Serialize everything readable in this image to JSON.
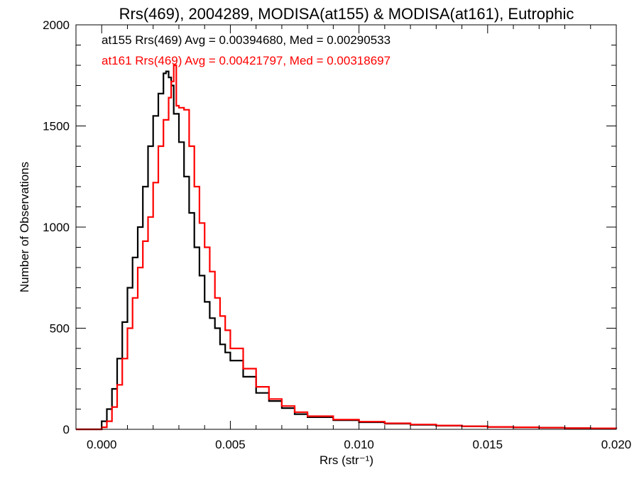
{
  "chart_data": {
    "type": "line",
    "title": "Rrs(469), 2004289, MODISA(at155) & MODISA(at161), Eutrophic",
    "xlabel": "Rrs (str⁻¹)",
    "ylabel": "Number of Observations",
    "xlim": [
      -0.001,
      0.02
    ],
    "ylim": [
      0,
      2000
    ],
    "x_ticks": [
      0.0,
      0.005,
      0.01,
      0.015,
      0.02
    ],
    "x_tick_labels": [
      "0.000",
      "0.005",
      "0.010",
      "0.015",
      "0.020"
    ],
    "y_ticks": [
      0,
      500,
      1000,
      1500,
      2000
    ],
    "y_tick_labels": [
      "0",
      "500",
      "1000",
      "1500",
      "2000"
    ],
    "grid": false,
    "legend_position": "top-left",
    "series": [
      {
        "name": "at155",
        "color": "#000000",
        "legend_text": "at155 Rrs(469) Avg = 0.00394680, Med = 0.00290533",
        "x": [
          -0.001,
          -0.0004,
          0.0,
          0.0002,
          0.0004,
          0.0006,
          0.0008,
          0.001,
          0.0012,
          0.0014,
          0.0016,
          0.0018,
          0.002,
          0.0022,
          0.0024,
          0.0025,
          0.0026,
          0.0027,
          0.0028,
          0.003,
          0.0032,
          0.0034,
          0.0036,
          0.0038,
          0.004,
          0.0042,
          0.0044,
          0.0046,
          0.0048,
          0.005,
          0.0055,
          0.006,
          0.0065,
          0.007,
          0.0075,
          0.008,
          0.009,
          0.01,
          0.011,
          0.012,
          0.013,
          0.014,
          0.015,
          0.016,
          0.017,
          0.018,
          0.019,
          0.02
        ],
        "y": [
          0,
          0,
          40,
          100,
          200,
          350,
          530,
          700,
          850,
          1000,
          1200,
          1400,
          1550,
          1660,
          1760,
          1770,
          1740,
          1700,
          1560,
          1420,
          1250,
          1070,
          900,
          760,
          630,
          550,
          500,
          420,
          380,
          340,
          260,
          180,
          140,
          105,
          75,
          60,
          45,
          35,
          28,
          22,
          18,
          15,
          12,
          10,
          8,
          6,
          5,
          4
        ]
      },
      {
        "name": "at161",
        "color": "#ff0000",
        "legend_text": "at161 Rrs(469) Avg = 0.00421797, Med = 0.00318697",
        "x": [
          -0.001,
          -0.0004,
          0.0,
          0.0002,
          0.0004,
          0.0006,
          0.0008,
          0.001,
          0.0012,
          0.0014,
          0.0016,
          0.0018,
          0.002,
          0.0022,
          0.0024,
          0.0026,
          0.0027,
          0.0028,
          0.0029,
          0.003,
          0.0032,
          0.0034,
          0.0036,
          0.0038,
          0.004,
          0.0042,
          0.0044,
          0.0046,
          0.0048,
          0.005,
          0.0055,
          0.006,
          0.0065,
          0.007,
          0.0075,
          0.008,
          0.009,
          0.01,
          0.011,
          0.012,
          0.013,
          0.014,
          0.015,
          0.016,
          0.017,
          0.018,
          0.019,
          0.02
        ],
        "y": [
          0,
          0,
          10,
          40,
          110,
          220,
          350,
          500,
          650,
          800,
          930,
          1050,
          1220,
          1400,
          1530,
          1640,
          1720,
          1800,
          1600,
          1590,
          1580,
          1400,
          1200,
          1020,
          900,
          780,
          650,
          560,
          490,
          400,
          300,
          210,
          150,
          115,
          85,
          65,
          48,
          38,
          30,
          24,
          19,
          15,
          12,
          10,
          8,
          6,
          5,
          4
        ]
      }
    ]
  }
}
